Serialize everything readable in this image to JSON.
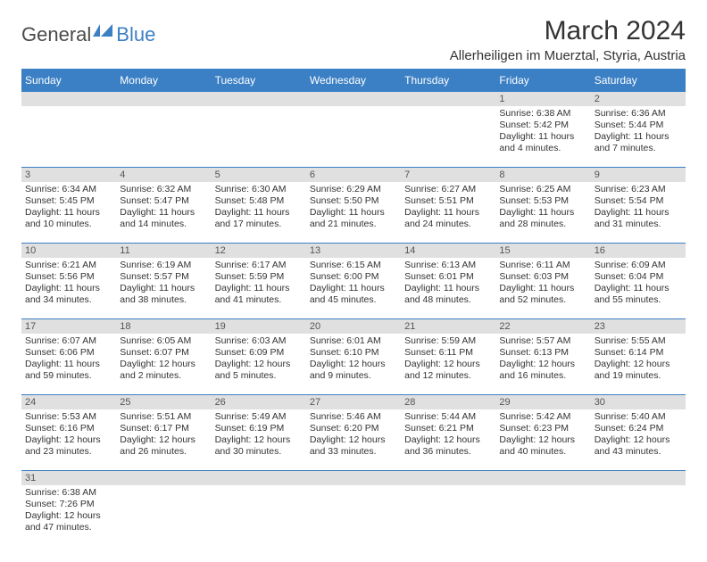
{
  "logo": {
    "dark": "General",
    "blue": "Blue"
  },
  "title": "March 2024",
  "location": "Allerheiligen im Muerztal, Styria, Austria",
  "colors": {
    "header_bg": "#3b7fc4",
    "header_fg": "#ffffff",
    "daynum_bg": "#e0e0e0",
    "cell_border": "#3b7fc4",
    "text": "#333333"
  },
  "weekdays": [
    "Sunday",
    "Monday",
    "Tuesday",
    "Wednesday",
    "Thursday",
    "Friday",
    "Saturday"
  ],
  "weeks": [
    [
      null,
      null,
      null,
      null,
      null,
      {
        "n": "1",
        "sr": "6:38 AM",
        "ss": "5:42 PM",
        "dl": "11 hours and 4 minutes."
      },
      {
        "n": "2",
        "sr": "6:36 AM",
        "ss": "5:44 PM",
        "dl": "11 hours and 7 minutes."
      }
    ],
    [
      {
        "n": "3",
        "sr": "6:34 AM",
        "ss": "5:45 PM",
        "dl": "11 hours and 10 minutes."
      },
      {
        "n": "4",
        "sr": "6:32 AM",
        "ss": "5:47 PM",
        "dl": "11 hours and 14 minutes."
      },
      {
        "n": "5",
        "sr": "6:30 AM",
        "ss": "5:48 PM",
        "dl": "11 hours and 17 minutes."
      },
      {
        "n": "6",
        "sr": "6:29 AM",
        "ss": "5:50 PM",
        "dl": "11 hours and 21 minutes."
      },
      {
        "n": "7",
        "sr": "6:27 AM",
        "ss": "5:51 PM",
        "dl": "11 hours and 24 minutes."
      },
      {
        "n": "8",
        "sr": "6:25 AM",
        "ss": "5:53 PM",
        "dl": "11 hours and 28 minutes."
      },
      {
        "n": "9",
        "sr": "6:23 AM",
        "ss": "5:54 PM",
        "dl": "11 hours and 31 minutes."
      }
    ],
    [
      {
        "n": "10",
        "sr": "6:21 AM",
        "ss": "5:56 PM",
        "dl": "11 hours and 34 minutes."
      },
      {
        "n": "11",
        "sr": "6:19 AM",
        "ss": "5:57 PM",
        "dl": "11 hours and 38 minutes."
      },
      {
        "n": "12",
        "sr": "6:17 AM",
        "ss": "5:59 PM",
        "dl": "11 hours and 41 minutes."
      },
      {
        "n": "13",
        "sr": "6:15 AM",
        "ss": "6:00 PM",
        "dl": "11 hours and 45 minutes."
      },
      {
        "n": "14",
        "sr": "6:13 AM",
        "ss": "6:01 PM",
        "dl": "11 hours and 48 minutes."
      },
      {
        "n": "15",
        "sr": "6:11 AM",
        "ss": "6:03 PM",
        "dl": "11 hours and 52 minutes."
      },
      {
        "n": "16",
        "sr": "6:09 AM",
        "ss": "6:04 PM",
        "dl": "11 hours and 55 minutes."
      }
    ],
    [
      {
        "n": "17",
        "sr": "6:07 AM",
        "ss": "6:06 PM",
        "dl": "11 hours and 59 minutes."
      },
      {
        "n": "18",
        "sr": "6:05 AM",
        "ss": "6:07 PM",
        "dl": "12 hours and 2 minutes."
      },
      {
        "n": "19",
        "sr": "6:03 AM",
        "ss": "6:09 PM",
        "dl": "12 hours and 5 minutes."
      },
      {
        "n": "20",
        "sr": "6:01 AM",
        "ss": "6:10 PM",
        "dl": "12 hours and 9 minutes."
      },
      {
        "n": "21",
        "sr": "5:59 AM",
        "ss": "6:11 PM",
        "dl": "12 hours and 12 minutes."
      },
      {
        "n": "22",
        "sr": "5:57 AM",
        "ss": "6:13 PM",
        "dl": "12 hours and 16 minutes."
      },
      {
        "n": "23",
        "sr": "5:55 AM",
        "ss": "6:14 PM",
        "dl": "12 hours and 19 minutes."
      }
    ],
    [
      {
        "n": "24",
        "sr": "5:53 AM",
        "ss": "6:16 PM",
        "dl": "12 hours and 23 minutes."
      },
      {
        "n": "25",
        "sr": "5:51 AM",
        "ss": "6:17 PM",
        "dl": "12 hours and 26 minutes."
      },
      {
        "n": "26",
        "sr": "5:49 AM",
        "ss": "6:19 PM",
        "dl": "12 hours and 30 minutes."
      },
      {
        "n": "27",
        "sr": "5:46 AM",
        "ss": "6:20 PM",
        "dl": "12 hours and 33 minutes."
      },
      {
        "n": "28",
        "sr": "5:44 AM",
        "ss": "6:21 PM",
        "dl": "12 hours and 36 minutes."
      },
      {
        "n": "29",
        "sr": "5:42 AM",
        "ss": "6:23 PM",
        "dl": "12 hours and 40 minutes."
      },
      {
        "n": "30",
        "sr": "5:40 AM",
        "ss": "6:24 PM",
        "dl": "12 hours and 43 minutes."
      }
    ],
    [
      {
        "n": "31",
        "sr": "6:38 AM",
        "ss": "7:26 PM",
        "dl": "12 hours and 47 minutes."
      },
      null,
      null,
      null,
      null,
      null,
      null
    ]
  ],
  "labels": {
    "sunrise": "Sunrise: ",
    "sunset": "Sunset: ",
    "daylight": "Daylight: "
  }
}
